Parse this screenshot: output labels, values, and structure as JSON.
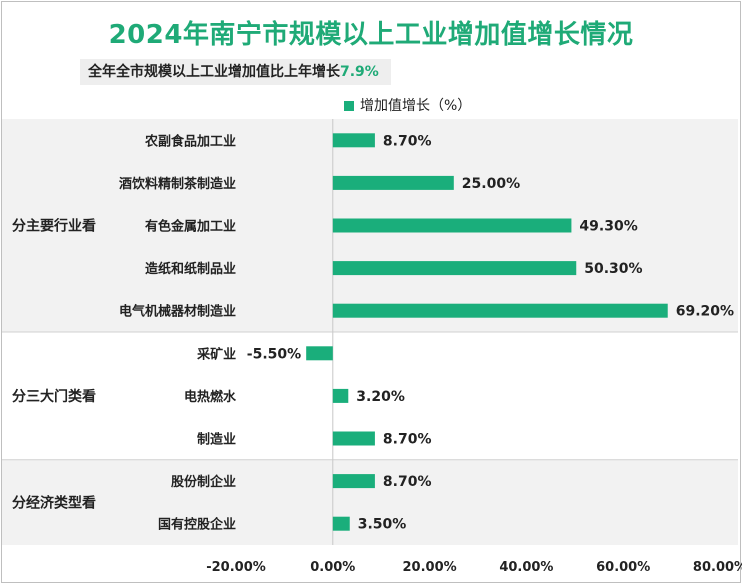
{
  "title": "2024年南宁市规模以上工业增加值增长情况",
  "subtitle": {
    "prefix": "全年全市规模以上工业增加值比上年增长",
    "value": "7.9%"
  },
  "colors": {
    "bar": "#1aae7b",
    "title": "#1faa77",
    "band": "#f2f2f2"
  },
  "chart_data": {
    "type": "bar",
    "orientation": "horizontal",
    "series": [
      {
        "name": "增加值增长（%）",
        "values": [
          8.7,
          25.0,
          49.3,
          50.3,
          69.2,
          -5.5,
          3.2,
          8.7,
          8.7,
          3.5
        ]
      }
    ],
    "categories": [
      "农副食品加工业",
      "酒饮料精制茶制造业",
      "有色金属加工业",
      "造纸和纸制品业",
      "电气机械器材制造业",
      "采矿业",
      "电热燃水",
      "制造业",
      "股份制企业",
      "国有控股企业"
    ],
    "data_labels": [
      "8.70%",
      "25.00%",
      "49.30%",
      "50.30%",
      "69.20%",
      "-5.50%",
      "3.20%",
      "8.70%",
      "8.70%",
      "3.50%"
    ],
    "groups": [
      {
        "name": "分主要行业看",
        "count": 5,
        "shaded": true
      },
      {
        "name": "分三大门类看",
        "count": 3,
        "shaded": false
      },
      {
        "name": "分经济类型看",
        "count": 2,
        "shaded": true
      }
    ],
    "xlim": [
      -20,
      80
    ],
    "xticks": [
      -20,
      0,
      20,
      40,
      60,
      80
    ],
    "xtick_labels": [
      "-20.00%",
      "0.00%",
      "20.00%",
      "40.00%",
      "60.00%",
      "80.00%"
    ],
    "legend_position": "top",
    "grid": false
  }
}
